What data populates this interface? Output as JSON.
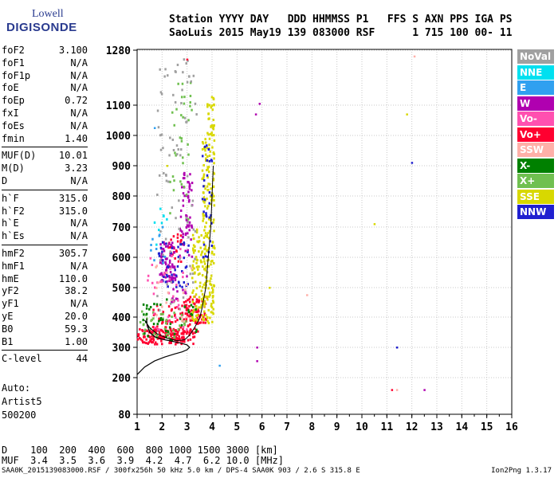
{
  "logo": {
    "line1": "Lowell",
    "line2": "DIGISONDE"
  },
  "header": {
    "line1": "Station YYYY DAY   DDD HHMMSS P1   FFS S AXN PPS IGA PS",
    "line2": "SaoLuis 2015 May19 139 083000 RSF      1 715 100 00- 11"
  },
  "params": [
    {
      "name": "foF2",
      "value": "3.100"
    },
    {
      "name": "foF1",
      "value": "N/A"
    },
    {
      "name": "foF1p",
      "value": "N/A"
    },
    {
      "name": "foE",
      "value": "N/A"
    },
    {
      "name": "foEp",
      "value": "0.72"
    },
    {
      "name": "fxI",
      "value": "N/A"
    },
    {
      "name": "foEs",
      "value": "N/A"
    },
    {
      "name": "fmin",
      "value": "1.40"
    },
    {
      "name": "MUF(D)",
      "value": "10.01"
    },
    {
      "name": "M(D)",
      "value": "3.23"
    },
    {
      "name": "D",
      "value": "N/A"
    },
    {
      "name": "h`F",
      "value": "315.0"
    },
    {
      "name": "h`F2",
      "value": "315.0"
    },
    {
      "name": "h`E",
      "value": "N/A"
    },
    {
      "name": "h`Es",
      "value": "N/A"
    },
    {
      "name": "hmF2",
      "value": "305.7"
    },
    {
      "name": "hmF1",
      "value": "N/A"
    },
    {
      "name": "hmE",
      "value": "110.0"
    },
    {
      "name": "yF2",
      "value": "38.2"
    },
    {
      "name": "yF1",
      "value": "N/A"
    },
    {
      "name": "yE",
      "value": "20.0"
    },
    {
      "name": "B0",
      "value": "59.3"
    },
    {
      "name": "B1",
      "value": "1.00"
    },
    {
      "name": "C-level",
      "value": "44"
    }
  ],
  "auto_block": [
    "Auto:",
    "Artist5",
    "500200"
  ],
  "legend": [
    {
      "label": "NoVal",
      "color": "#a0a0a0"
    },
    {
      "label": "NNE",
      "color": "#00e0f0"
    },
    {
      "label": "E",
      "color": "#30a0f0"
    },
    {
      "label": "W",
      "color": "#b000b0"
    },
    {
      "label": "Vo-",
      "color": "#ff50b0"
    },
    {
      "label": "Vo+",
      "color": "#ff0030"
    },
    {
      "label": "SSW",
      "color": "#ffb0a8"
    },
    {
      "label": "X-",
      "color": "#008000"
    },
    {
      "label": "X+",
      "color": "#70c050"
    },
    {
      "label": "SSE",
      "color": "#d8d800"
    },
    {
      "label": "NNW",
      "color": "#2020d0"
    }
  ],
  "muf_table": {
    "row1": "D    100  200  400  600  800 1000 1500 3000 [km]",
    "row2": "MUF  3.4  3.5  3.6  3.9  4.2  4.7  6.2 10.0 [MHz]"
  },
  "footer": {
    "left": "SAA0K_2015139083000.RSF / 300fx256h 50 kHz 5.0 km / DPS-4 SAA0K 903 / 2.6 S 315.8 E",
    "right": "Ion2Png 1.3.17"
  },
  "chart_data": {
    "type": "scatter",
    "x_ticks": [
      "1",
      "2",
      "3",
      "4",
      "5",
      "6",
      "7",
      "8",
      "9",
      "10",
      "11",
      "12",
      "13",
      "14",
      "15",
      "16"
    ],
    "y_ticks": [
      "80",
      "200",
      "300",
      "400",
      "500",
      "600",
      "700",
      "800",
      "900",
      "1000",
      "1100",
      "1280"
    ],
    "xlim": [
      1,
      16
    ],
    "ylim": [
      80,
      1280
    ],
    "grid": true,
    "profile_curve": [
      [
        1.0,
        210
      ],
      [
        1.3,
        235
      ],
      [
        1.7,
        255
      ],
      [
        2.1,
        268
      ],
      [
        2.5,
        278
      ],
      [
        2.8,
        285
      ],
      [
        3.0,
        292
      ],
      [
        3.1,
        300
      ],
      [
        3.0,
        308
      ],
      [
        2.7,
        315
      ],
      [
        2.4,
        320
      ],
      [
        2.0,
        327
      ],
      [
        1.7,
        335
      ],
      [
        1.5,
        350
      ],
      [
        1.4,
        375
      ],
      [
        1.38,
        395
      ]
    ],
    "trace_curve": [
      [
        1.3,
        390
      ],
      [
        1.5,
        365
      ],
      [
        1.8,
        345
      ],
      [
        2.2,
        330
      ],
      [
        2.6,
        322
      ],
      [
        2.9,
        325
      ],
      [
        3.1,
        340
      ],
      [
        3.3,
        365
      ],
      [
        3.5,
        395
      ],
      [
        3.6,
        430
      ],
      [
        3.75,
        500
      ],
      [
        3.85,
        600
      ],
      [
        3.95,
        700
      ],
      [
        4.0,
        800
      ],
      [
        4.05,
        900
      ]
    ],
    "clusters": [
      {
        "color_index": 5,
        "x": [
          1.0,
          3.3
        ],
        "y": [
          310,
          360
        ],
        "n": 150
      },
      {
        "color_index": 5,
        "x": [
          1.6,
          3.5
        ],
        "y": [
          340,
          440
        ],
        "n": 90
      },
      {
        "color_index": 5,
        "x": [
          2.8,
          3.8
        ],
        "y": [
          380,
          470
        ],
        "n": 60
      },
      {
        "color_index": 5,
        "x": [
          2.2,
          2.8
        ],
        "y": [
          580,
          680
        ],
        "n": 25
      },
      {
        "color_index": 9,
        "x": [
          3.2,
          4.1
        ],
        "y": [
          380,
          700
        ],
        "n": 180
      },
      {
        "color_index": 9,
        "x": [
          3.6,
          4.1
        ],
        "y": [
          700,
          1000
        ],
        "n": 90
      },
      {
        "color_index": 9,
        "x": [
          3.8,
          4.1
        ],
        "y": [
          1000,
          1130
        ],
        "n": 30
      },
      {
        "color_index": 3,
        "x": [
          1.9,
          2.5
        ],
        "y": [
          520,
          650
        ],
        "n": 70
      },
      {
        "color_index": 3,
        "x": [
          2.7,
          3.2
        ],
        "y": [
          600,
          900
        ],
        "n": 60
      },
      {
        "color_index": 3,
        "x": [
          2.3,
          3.0
        ],
        "y": [
          450,
          550
        ],
        "n": 20
      },
      {
        "color_index": 10,
        "x": [
          1.8,
          3.1
        ],
        "y": [
          500,
          650
        ],
        "n": 45
      },
      {
        "color_index": 10,
        "x": [
          3.6,
          4.0
        ],
        "y": [
          600,
          980
        ],
        "n": 30
      },
      {
        "color_index": 8,
        "x": [
          1.1,
          3.0
        ],
        "y": [
          330,
          420
        ],
        "n": 40
      },
      {
        "color_index": 8,
        "x": [
          2.3,
          3.2
        ],
        "y": [
          700,
          1200
        ],
        "n": 35
      },
      {
        "color_index": 7,
        "x": [
          1.2,
          3.4
        ],
        "y": [
          320,
          460
        ],
        "n": 45
      },
      {
        "color_index": 4,
        "x": [
          1.4,
          3.0
        ],
        "y": [
          330,
          640
        ],
        "n": 35
      },
      {
        "color_index": 6,
        "x": [
          1.6,
          3.2
        ],
        "y": [
          380,
          600
        ],
        "n": 20
      },
      {
        "color_index": 1,
        "x": [
          1.6,
          2.2
        ],
        "y": [
          600,
          760
        ],
        "n": 8
      },
      {
        "color_index": 2,
        "x": [
          1.5,
          2.5
        ],
        "y": [
          580,
          700
        ],
        "n": 10
      },
      {
        "color_index": 0,
        "x": [
          1.8,
          3.4
        ],
        "y": [
          420,
          1250
        ],
        "n": 80
      }
    ],
    "scattered_points": [
      {
        "x": 5.9,
        "y": 1105,
        "color_index": 3
      },
      {
        "x": 5.75,
        "y": 1070,
        "color_index": 3
      },
      {
        "x": 5.8,
        "y": 300,
        "color_index": 3
      },
      {
        "x": 5.8,
        "y": 255,
        "color_index": 3
      },
      {
        "x": 6.3,
        "y": 500,
        "color_index": 9
      },
      {
        "x": 4.3,
        "y": 240,
        "color_index": 2
      },
      {
        "x": 7.8,
        "y": 475,
        "color_index": 6
      },
      {
        "x": 10.5,
        "y": 710,
        "color_index": 9
      },
      {
        "x": 11.4,
        "y": 300,
        "color_index": 10
      },
      {
        "x": 11.8,
        "y": 1070,
        "color_index": 9
      },
      {
        "x": 12.0,
        "y": 910,
        "color_index": 10
      },
      {
        "x": 12.1,
        "y": 1260,
        "color_index": 6
      },
      {
        "x": 11.2,
        "y": 160,
        "color_index": 5
      },
      {
        "x": 11.4,
        "y": 160,
        "color_index": 6
      },
      {
        "x": 12.5,
        "y": 160,
        "color_index": 3
      },
      {
        "x": 1.7,
        "y": 1025,
        "color_index": 2
      },
      {
        "x": 3.0,
        "y": 1250,
        "color_index": 5
      },
      {
        "x": 2.2,
        "y": 900,
        "color_index": 9
      }
    ]
  }
}
